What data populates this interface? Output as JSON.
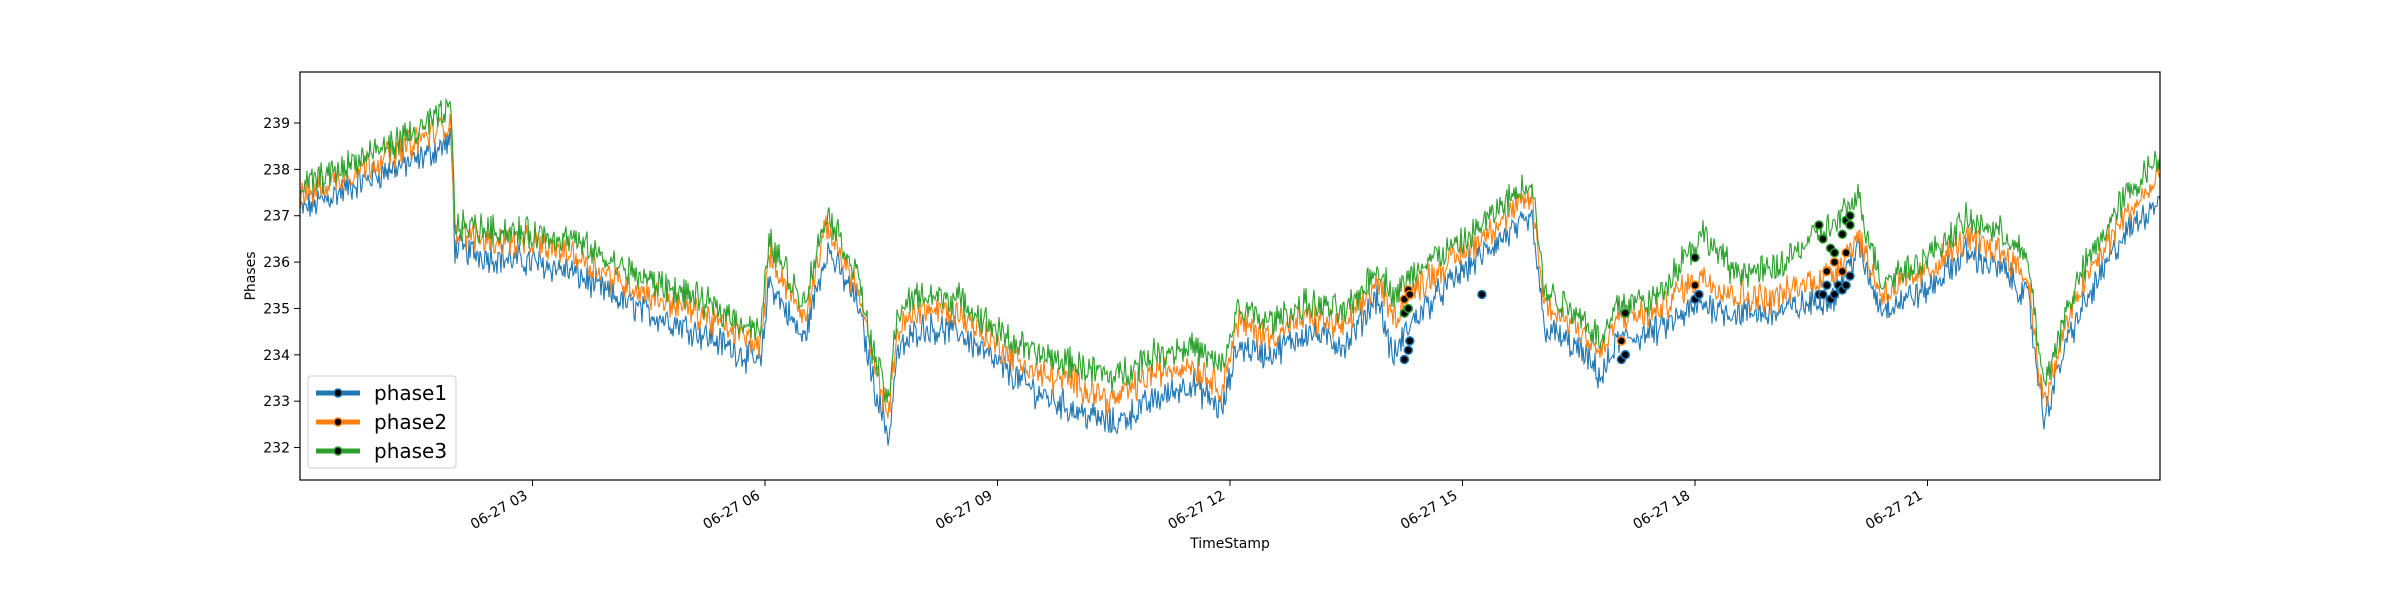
{
  "chart_data": {
    "type": "line",
    "xlabel": "TimeStamp",
    "ylabel": "Phases",
    "ylim": [
      231.3,
      240.1
    ],
    "xlim_hours": [
      0,
      24
    ],
    "x_tick_hours": [
      3,
      6,
      9,
      12,
      15,
      18,
      21
    ],
    "x_tick_labels": [
      "06-27 03",
      "06-27 06",
      "06-27 09",
      "06-27 12",
      "06-27 15",
      "06-27 18",
      "06-27 21"
    ],
    "y_ticks": [
      232,
      233,
      234,
      235,
      236,
      237,
      238,
      239
    ],
    "y_tick_labels": [
      "232",
      "233",
      "234",
      "235",
      "236",
      "237",
      "238",
      "239"
    ],
    "grid": false,
    "legend_position": "lower-left",
    "marker_color": "#000000",
    "series": [
      {
        "name": "phase1",
        "color": "#1f77b4",
        "x_hours": [
          0,
          0.5,
          1,
          1.5,
          1.95,
          2.0,
          2.5,
          3,
          3.5,
          4,
          4.5,
          5,
          5.5,
          5.95,
          6.05,
          6.5,
          6.8,
          7.2,
          7.4,
          7.6,
          7.7,
          8,
          8.5,
          9,
          9.5,
          10,
          10.5,
          11,
          11.5,
          11.9,
          12.1,
          12.5,
          13,
          13.5,
          13.9,
          14.1,
          14.3,
          14.5,
          15,
          15.5,
          15.9,
          16.05,
          16.5,
          16.8,
          17,
          17.5,
          17.8,
          18.1,
          18.5,
          19,
          19.5,
          19.8,
          20.1,
          20.4,
          21,
          21.5,
          22,
          22.3,
          22.5,
          22.8,
          23,
          23.5,
          24
        ],
        "values": [
          237.1,
          237.5,
          237.9,
          238.2,
          238.6,
          236.3,
          236.1,
          236.0,
          235.8,
          235.3,
          234.9,
          234.6,
          234.2,
          233.8,
          235.6,
          234.3,
          236.3,
          235.1,
          233.4,
          232.2,
          234.0,
          234.6,
          234.5,
          233.8,
          233.2,
          232.8,
          232.5,
          233.0,
          233.4,
          232.8,
          234.2,
          234.0,
          234.5,
          234.2,
          235.3,
          233.9,
          234.6,
          235.0,
          235.8,
          236.5,
          236.9,
          234.6,
          234.1,
          233.5,
          234.3,
          234.5,
          234.8,
          235.1,
          234.9,
          234.9,
          235.1,
          235.3,
          236.3,
          235.0,
          235.4,
          236.2,
          235.8,
          235.2,
          232.6,
          234.3,
          235.0,
          236.5,
          237.4
        ],
        "markers_x_hours": [
          14.25,
          14.3,
          14.32,
          15.25,
          17.05,
          17.1,
          17.1,
          18.0,
          18.05,
          18.05,
          19.6,
          19.65,
          19.7,
          19.75,
          19.8,
          19.85,
          19.9,
          19.95,
          20.0
        ],
        "markers_values": [
          233.9,
          234.1,
          234.3,
          235.3,
          233.9,
          234.0,
          234.0,
          235.2,
          235.3,
          235.3,
          235.3,
          235.3,
          235.5,
          235.2,
          235.3,
          235.5,
          235.4,
          235.5,
          235.7
        ]
      },
      {
        "name": "phase2",
        "color": "#ff7f0e",
        "x_hours": [
          0,
          0.5,
          1,
          1.5,
          1.95,
          2.0,
          2.5,
          3,
          3.5,
          4,
          4.5,
          5,
          5.5,
          5.95,
          6.05,
          6.5,
          6.8,
          7.2,
          7.4,
          7.6,
          7.7,
          8,
          8.5,
          9,
          9.5,
          10,
          10.5,
          11,
          11.5,
          11.9,
          12.1,
          12.5,
          13,
          13.5,
          13.9,
          14.1,
          14.3,
          14.5,
          15,
          15.5,
          15.9,
          16.05,
          16.5,
          16.8,
          17,
          17.5,
          17.8,
          18.1,
          18.5,
          19,
          19.5,
          19.8,
          20.1,
          20.4,
          21,
          21.5,
          22,
          22.3,
          22.5,
          22.8,
          23,
          23.5,
          24
        ],
        "values": [
          237.4,
          237.8,
          238.2,
          238.6,
          239.0,
          236.6,
          236.5,
          236.4,
          236.2,
          235.7,
          235.3,
          235.0,
          234.6,
          234.2,
          236.2,
          234.8,
          236.8,
          235.4,
          233.8,
          232.7,
          234.5,
          235.0,
          234.9,
          234.2,
          233.6,
          233.4,
          233.0,
          233.6,
          233.8,
          233.3,
          234.7,
          234.4,
          234.8,
          234.6,
          235.6,
          234.8,
          235.2,
          235.6,
          236.2,
          236.9,
          237.4,
          235.1,
          234.6,
          234.0,
          234.8,
          234.9,
          235.4,
          235.7,
          235.3,
          235.2,
          235.6,
          235.8,
          236.6,
          235.3,
          235.8,
          236.5,
          236.2,
          235.6,
          232.9,
          234.7,
          235.5,
          236.9,
          237.8
        ],
        "markers_x_hours": [
          14.25,
          14.3,
          14.32,
          17.05,
          18.0,
          19.7,
          19.8,
          19.9,
          19.95
        ],
        "markers_values": [
          235.2,
          235.4,
          235.3,
          234.3,
          235.5,
          235.8,
          236.0,
          235.8,
          236.2
        ]
      },
      {
        "name": "phase3",
        "color": "#2ca02c",
        "x_hours": [
          0,
          0.5,
          1,
          1.5,
          1.95,
          2.0,
          2.5,
          3,
          3.5,
          4,
          4.5,
          5,
          5.5,
          5.95,
          6.05,
          6.5,
          6.8,
          7.2,
          7.4,
          7.6,
          7.7,
          8,
          8.5,
          9,
          9.5,
          10,
          10.5,
          11,
          11.5,
          11.9,
          12.1,
          12.5,
          13,
          13.5,
          13.9,
          14.1,
          14.3,
          14.5,
          15,
          15.5,
          15.9,
          16.05,
          16.5,
          16.8,
          17,
          17.5,
          17.8,
          18.1,
          18.5,
          19,
          19.5,
          19.8,
          20.1,
          20.4,
          21,
          21.5,
          22,
          22.3,
          22.5,
          22.8,
          23,
          23.5,
          24
        ],
        "values": [
          237.6,
          238.0,
          238.4,
          238.8,
          239.3,
          236.8,
          236.7,
          236.6,
          236.5,
          236.0,
          235.6,
          235.3,
          234.9,
          234.5,
          236.5,
          235.1,
          237.1,
          235.7,
          234.0,
          233.0,
          234.9,
          235.3,
          235.2,
          234.5,
          234.0,
          233.8,
          233.5,
          234.0,
          234.2,
          233.7,
          235.0,
          234.7,
          235.1,
          234.9,
          235.9,
          235.3,
          235.6,
          236.0,
          236.4,
          237.2,
          237.8,
          235.4,
          234.9,
          234.3,
          235.1,
          235.2,
          236.0,
          236.6,
          235.8,
          235.8,
          236.5,
          236.8,
          237.4,
          235.6,
          236.1,
          236.9,
          236.6,
          236.0,
          233.3,
          235.0,
          235.8,
          237.3,
          238.3
        ],
        "markers_x_hours": [
          14.25,
          14.3,
          17.1,
          18.0,
          19.6,
          19.65,
          19.75,
          19.8,
          19.9,
          19.95,
          20.0,
          20.0
        ],
        "markers_values": [
          234.9,
          235.0,
          234.9,
          236.1,
          236.8,
          236.5,
          236.3,
          236.2,
          236.6,
          236.9,
          237.0,
          236.8
        ]
      }
    ]
  }
}
